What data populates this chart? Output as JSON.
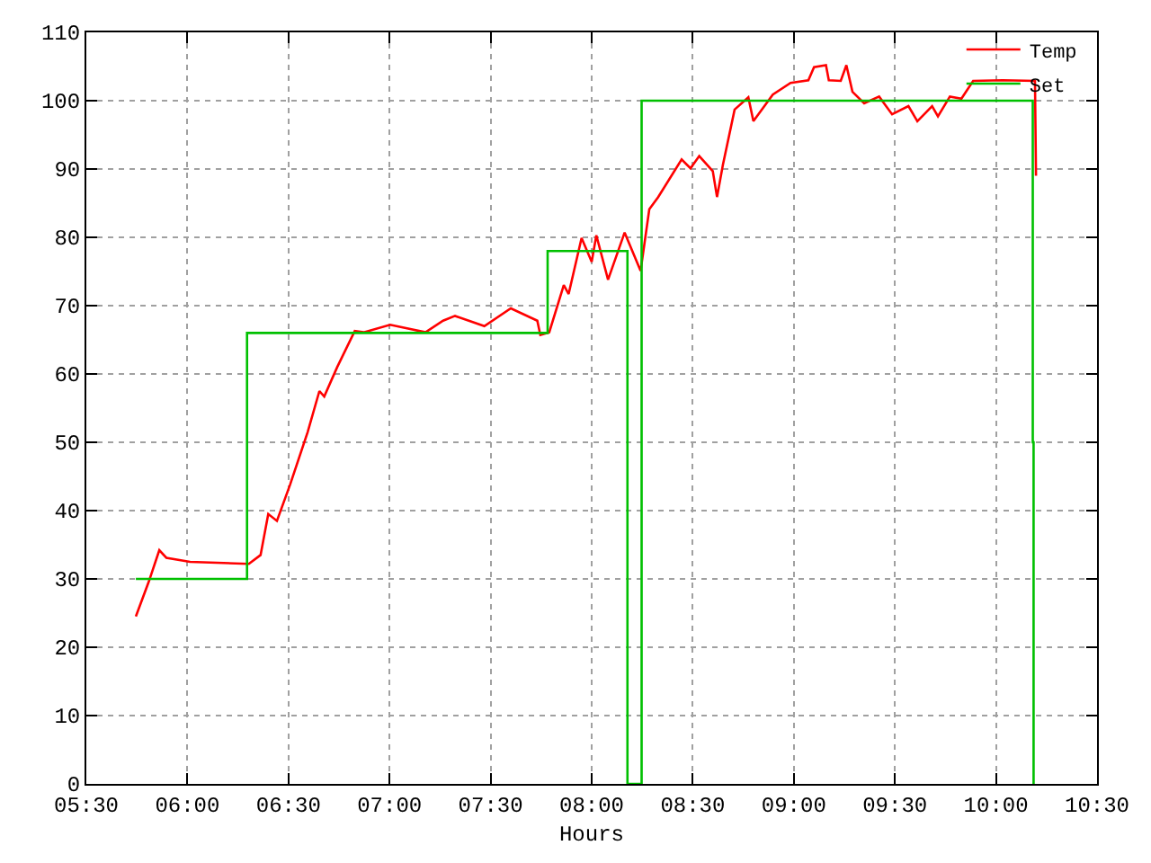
{
  "chart_data": {
    "type": "line",
    "xlabel": "Hours",
    "xlim": [
      5.5,
      10.5
    ],
    "xticks": [
      {
        "value": 5.5,
        "label": "05:30"
      },
      {
        "value": 6,
        "label": "06:00"
      },
      {
        "value": 6.5,
        "label": "06:30"
      },
      {
        "value": 7,
        "label": "07:00"
      },
      {
        "value": 7.5,
        "label": "07:30"
      },
      {
        "value": 8,
        "label": "08:00"
      },
      {
        "value": 8.5,
        "label": "08:30"
      },
      {
        "value": 9,
        "label": "09:00"
      },
      {
        "value": 9.5,
        "label": "09:30"
      },
      {
        "value": 10,
        "label": "10:00"
      },
      {
        "value": 10.5,
        "label": "10:30"
      }
    ],
    "ylim": [
      0,
      110
    ],
    "yticks": [
      0,
      10,
      20,
      30,
      40,
      50,
      60,
      70,
      80,
      90,
      100,
      110
    ],
    "grid": true,
    "legend": "top right",
    "series": [
      {
        "name": "Temp",
        "color": "#ff0000",
        "x": [
          5.745,
          5.809,
          5.861,
          5.896,
          6.013,
          6.304,
          6.362,
          6.4,
          6.443,
          6.508,
          6.595,
          6.653,
          6.677,
          6.741,
          6.828,
          6.872,
          7.003,
          7.178,
          7.265,
          7.324,
          7.469,
          7.6,
          7.731,
          7.746,
          7.79,
          7.862,
          7.886,
          7.95,
          8.0,
          8.023,
          8.081,
          8.163,
          8.242,
          8.285,
          8.329,
          8.445,
          8.489,
          8.532,
          8.599,
          8.62,
          8.649,
          8.707,
          8.775,
          8.8,
          8.896,
          8.984,
          9.072,
          9.1,
          9.159,
          9.173,
          9.232,
          9.26,
          9.29,
          9.348,
          9.422,
          9.486,
          9.567,
          9.611,
          9.684,
          9.713,
          9.772,
          9.829,
          9.887,
          10.033,
          10.193,
          10.198
        ],
        "values": [
          24.5,
          29.6,
          34.2,
          33.1,
          32.5,
          32.2,
          33.5,
          39.5,
          38.5,
          43.8,
          51.5,
          57.5,
          56.7,
          61.0,
          66.3,
          66.1,
          67.2,
          66.1,
          67.8,
          68.5,
          67.0,
          69.6,
          67.8,
          65.7,
          66.1,
          73.0,
          71.7,
          79.9,
          76.4,
          80.3,
          73.8,
          80.7,
          75.1,
          84.1,
          85.9,
          91.4,
          90.1,
          91.9,
          89.7,
          85.9,
          90.6,
          98.7,
          100.5,
          97.0,
          100.9,
          102.6,
          103.0,
          104.9,
          105.2,
          103.0,
          102.9,
          105.2,
          101.3,
          99.6,
          100.6,
          98.0,
          99.2,
          97.0,
          99.2,
          97.7,
          100.6,
          100.3,
          102.9,
          103.0,
          102.9,
          89.0
        ]
      },
      {
        "name": "Set",
        "type": "step",
        "color": "#00c000",
        "x": [
          5.745,
          6.295,
          7.782,
          8.177,
          8.247,
          10.182,
          10.186
        ],
        "values": [
          30,
          66,
          78,
          0,
          100,
          50,
          0
        ]
      }
    ]
  }
}
